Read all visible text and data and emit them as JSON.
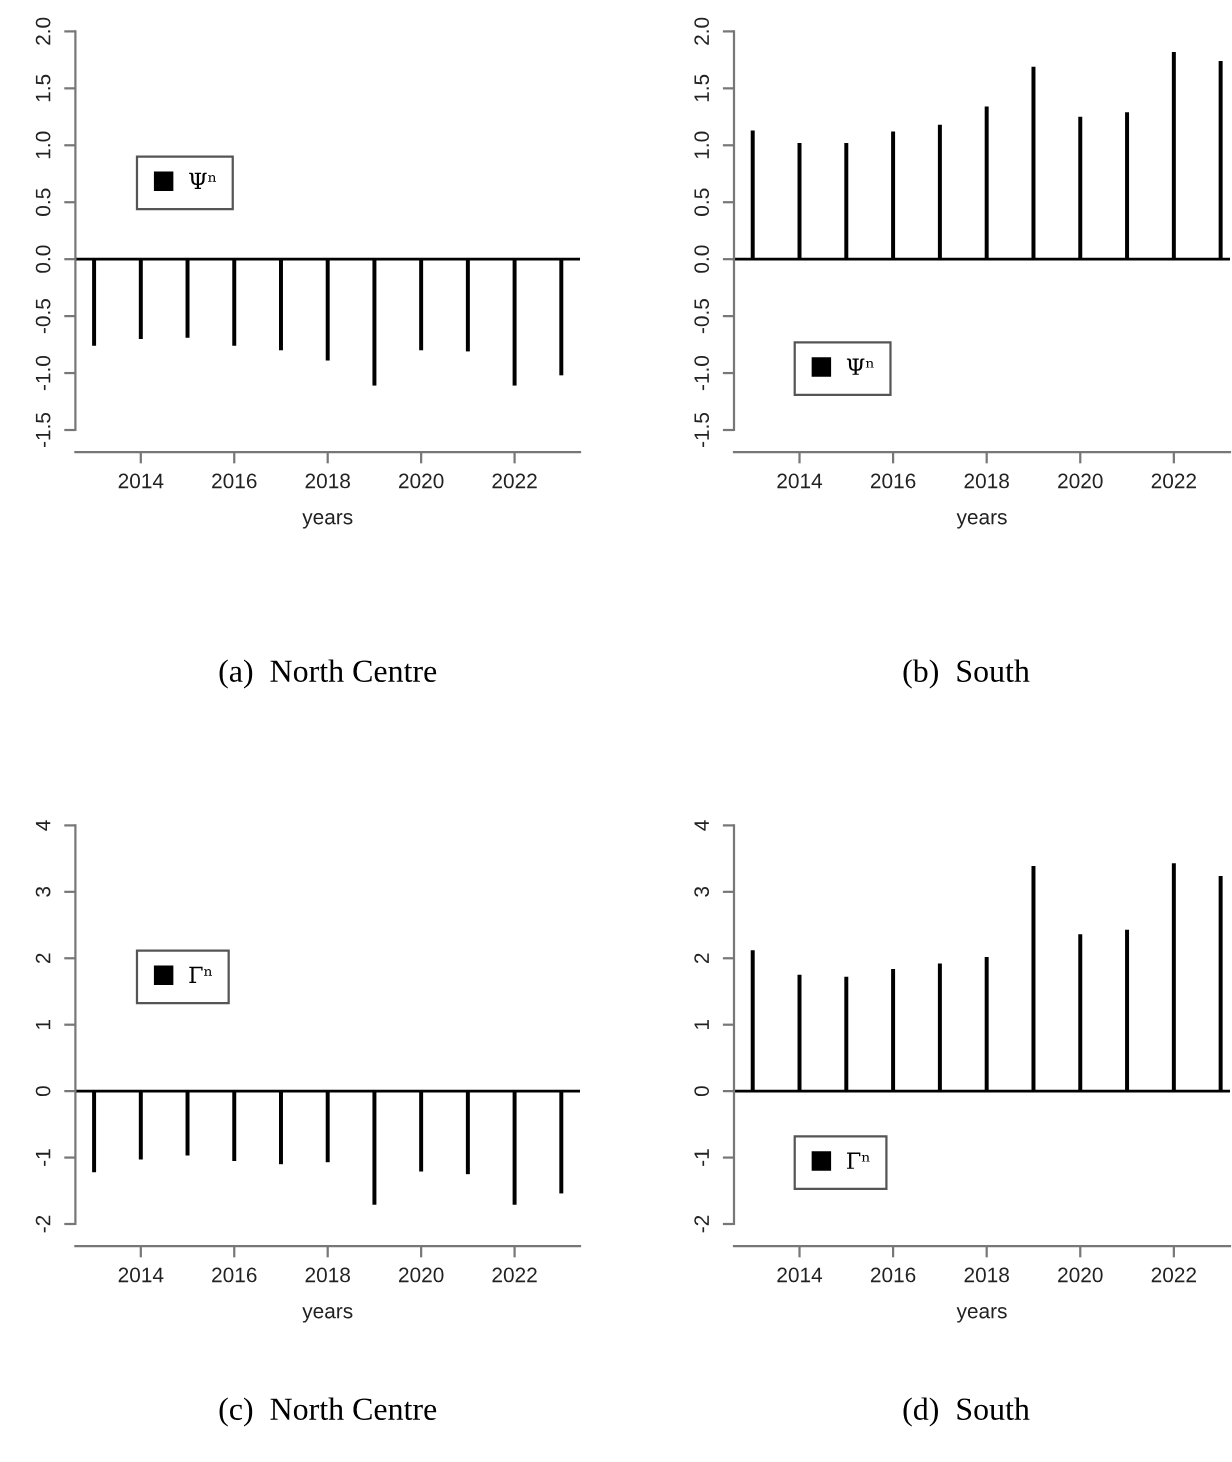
{
  "chart_data": [
    {
      "type": "bar",
      "title": "(a)  North Centre",
      "xlabel": "years",
      "x": [
        2013,
        2014,
        2015,
        2016,
        2017,
        2018,
        2019,
        2020,
        2021,
        2022,
        2023
      ],
      "series": [
        {
          "name": "Ψⁿ",
          "color": "#000000",
          "values": [
            -0.76,
            -0.7,
            -0.69,
            -0.76,
            -0.8,
            -0.89,
            -1.11,
            -0.8,
            -0.81,
            -1.11,
            -1.02
          ]
        }
      ],
      "xlim": [
        2012.6,
        2023.4
      ],
      "xticks": [
        2014,
        2016,
        2018,
        2020,
        2022
      ],
      "ylim": [
        -1.5,
        2.0
      ],
      "yticks": [
        {
          "value": -1.5,
          "label": "-1.5"
        },
        {
          "value": -1.0,
          "label": "-1.0"
        },
        {
          "value": -0.5,
          "label": "-0.5"
        },
        {
          "value": 0.0,
          "label": "0.0"
        },
        {
          "value": 0.5,
          "label": "0.5"
        },
        {
          "value": 1.0,
          "label": "1.0"
        },
        {
          "value": 1.5,
          "label": "1.5"
        },
        {
          "value": 2.0,
          "label": "2.0"
        }
      ],
      "ref_lines": [
        {
          "axis": "y",
          "value": 0,
          "color": "#000000"
        }
      ],
      "legend": "left",
      "grid": false
    },
    {
      "type": "bar",
      "title": "(b)  South",
      "xlabel": "years",
      "x": [
        2013,
        2014,
        2015,
        2016,
        2017,
        2018,
        2019,
        2020,
        2021,
        2022,
        2023
      ],
      "series": [
        {
          "name": "Ψⁿ",
          "color": "#000000",
          "values": [
            1.13,
            1.02,
            1.02,
            1.12,
            1.18,
            1.34,
            1.69,
            1.25,
            1.29,
            1.82,
            1.74
          ]
        }
      ],
      "xlim": [
        2012.6,
        2023.2
      ],
      "xticks": [
        2014,
        2016,
        2018,
        2020,
        2022
      ],
      "ylim": [
        -1.5,
        2.0
      ],
      "yticks": [
        {
          "value": -1.5,
          "label": "-1.5"
        },
        {
          "value": -1.0,
          "label": "-1.0"
        },
        {
          "value": -0.5,
          "label": "-0.5"
        },
        {
          "value": 0.0,
          "label": "0.0"
        },
        {
          "value": 0.5,
          "label": "0.5"
        },
        {
          "value": 1.0,
          "label": "1.0"
        },
        {
          "value": 1.5,
          "label": "1.5"
        },
        {
          "value": 2.0,
          "label": "2.0"
        }
      ],
      "ref_lines": [
        {
          "axis": "y",
          "value": 0,
          "color": "#000000"
        }
      ],
      "legend": "bottom left",
      "grid": false
    },
    {
      "type": "bar",
      "title": "(c)  North Centre",
      "xlabel": "years",
      "x": [
        2013,
        2014,
        2015,
        2016,
        2017,
        2018,
        2019,
        2020,
        2021,
        2022,
        2023
      ],
      "series": [
        {
          "name": "Γⁿ",
          "color": "#000000",
          "values": [
            -1.22,
            -1.03,
            -0.97,
            -1.05,
            -1.1,
            -1.07,
            -1.71,
            -1.21,
            -1.25,
            -1.71,
            -1.54
          ]
        }
      ],
      "xlim": [
        2012.6,
        2023.4
      ],
      "xticks": [
        2014,
        2016,
        2018,
        2020,
        2022
      ],
      "ylim": [
        -2,
        4
      ],
      "yticks": [
        -2,
        -1,
        0,
        1,
        2,
        3,
        4
      ],
      "ref_lines": [
        {
          "axis": "y",
          "value": 0,
          "color": "#000000"
        }
      ],
      "legend": "left",
      "grid": false
    },
    {
      "type": "bar",
      "title": "(d)  South",
      "xlabel": "years",
      "x": [
        2013,
        2014,
        2015,
        2016,
        2017,
        2018,
        2019,
        2020,
        2021,
        2022,
        2023
      ],
      "series": [
        {
          "name": "Γⁿ",
          "color": "#000000",
          "values": [
            2.12,
            1.75,
            1.72,
            1.84,
            1.92,
            2.02,
            3.39,
            2.36,
            2.43,
            3.43,
            3.24
          ]
        }
      ],
      "xlim": [
        2012.6,
        2023.2
      ],
      "xticks": [
        2014,
        2016,
        2018,
        2020,
        2022
      ],
      "ylim": [
        -2,
        4
      ],
      "yticks": [
        -2,
        -1,
        0,
        1,
        2,
        3,
        4
      ],
      "ref_lines": [
        {
          "axis": "y",
          "value": 0,
          "color": "#000000"
        }
      ],
      "legend": "bottom left",
      "grid": false
    }
  ]
}
